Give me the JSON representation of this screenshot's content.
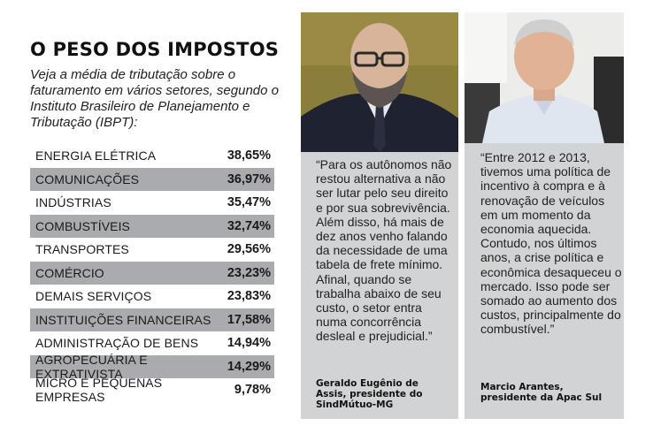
{
  "title": "O PESO DOS IMPOSTOS",
  "subtitle": "Veja a média de tributação sobre o faturamento em vários setores, segundo o Instituto Brasileiro de Planejamento e Tributação (IBPT):",
  "rows": [
    {
      "label": "ENERGIA ELÉTRICA",
      "value": "38,65%"
    },
    {
      "label": "COMUNICAÇÕES",
      "value": "36,97%"
    },
    {
      "label": "INDÚSTRIAS",
      "value": "35,47%"
    },
    {
      "label": "COMBUSTÍVEIS",
      "value": "32,74%"
    },
    {
      "label": "TRANSPORTES",
      "value": "29,56%"
    },
    {
      "label": "COMÉRCIO",
      "value": "23,23%"
    },
    {
      "label": "DEMAIS SERVIÇOS",
      "value": "23,83%"
    },
    {
      "label": "INSTITUIÇÕES FINANCEIRAS",
      "value": "17,58%"
    },
    {
      "label": "ADMINISTRAÇÃO DE BENS",
      "value": "14,94%"
    },
    {
      "label": "AGROPECUÁRIA E EXTRATIVISTA",
      "value": "14,29%"
    },
    {
      "label": "MICRO E PEQUENAS EMPRESAS",
      "value": "9,78%"
    }
  ],
  "quotes": [
    {
      "text": "“Para os autônomos não restou alternativa a não ser lutar pelo seu direito e por sua sobrevivência. Além disso, há mais de dez anos venho falando da necessidade de uma tabela de frete mínimo. Afinal, quando se trabalha abaixo de seu custo, o setor entra numa concorrência desleal e prejudicial.”",
      "author": "Geraldo Eugênio de Assis, presidente do SindMútuo-MG"
    },
    {
      "text": "“Entre 2012 e 2013, tivemos uma política de incentivo à compra e à renovação de veículos em um momento da economia aquecida. Contudo, nos últimos anos, a crise política e econômica desaqueceu o mercado. Isso pode ser somado ao aumento dos custos, principalmente do combustível.”",
      "author": "Marcio Arantes, presidente da Apac Sul"
    }
  ],
  "colors": {
    "row_shade": "#a9abae",
    "panel_bg": "#d1d3d4"
  }
}
